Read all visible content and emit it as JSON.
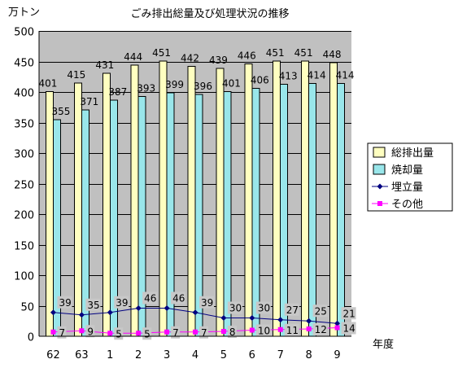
{
  "chart_data": {
    "type": "bar",
    "title": "ごみ排出総量及び処理状況の推移",
    "ylabel": "万トン",
    "xlabel": "年度",
    "categories": [
      "62",
      "63",
      "1",
      "2",
      "3",
      "4",
      "5",
      "6",
      "7",
      "8",
      "9"
    ],
    "ylim": [
      0,
      500
    ],
    "yticks": [
      0,
      50,
      100,
      150,
      200,
      250,
      300,
      350,
      400,
      450,
      500
    ],
    "grid": true,
    "legend_position": "right",
    "series": [
      {
        "name": "総排出量",
        "kind": "bar",
        "color": "#ffffc0",
        "values": [
          401,
          415,
          431,
          444,
          451,
          442,
          439,
          446,
          451,
          451,
          448
        ]
      },
      {
        "name": "焼却量",
        "kind": "bar",
        "color": "#99e6ea",
        "values": [
          355,
          371,
          387,
          393,
          399,
          396,
          401,
          406,
          413,
          414,
          414
        ]
      },
      {
        "name": "埋立量",
        "kind": "line",
        "color": "#000080",
        "marker": "diamond",
        "values": [
          39,
          35,
          39,
          46,
          46,
          39,
          30,
          30,
          27,
          25,
          21
        ]
      },
      {
        "name": "その他",
        "kind": "line",
        "color": "#ff00ff",
        "marker": "square",
        "values": [
          7,
          9,
          5,
          5,
          7,
          7,
          8,
          10,
          11,
          12,
          14
        ]
      }
    ]
  }
}
